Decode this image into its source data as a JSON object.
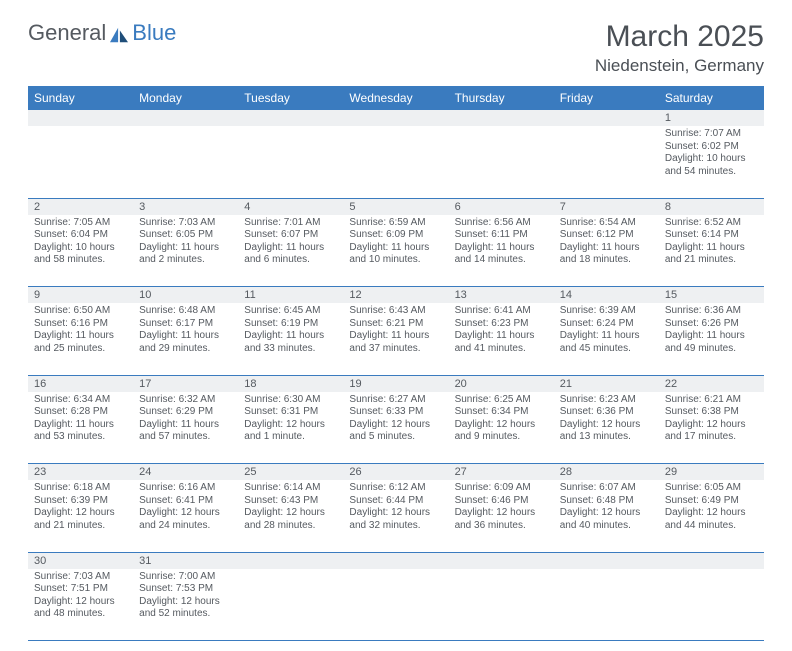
{
  "brand": {
    "general": "General",
    "blue": "Blue"
  },
  "title": "March 2025",
  "location": "Niedenstein, Germany",
  "colors": {
    "header_bg": "#3a7bbf",
    "header_text": "#ffffff",
    "daynum_bg": "#eef0f2",
    "border": "#3a7bbf",
    "text": "#555a60",
    "page_bg": "#ffffff"
  },
  "day_headers": [
    "Sunday",
    "Monday",
    "Tuesday",
    "Wednesday",
    "Thursday",
    "Friday",
    "Saturday"
  ],
  "weeks": [
    [
      {
        "n": "",
        "sr": "",
        "ss": "",
        "dl": ""
      },
      {
        "n": "",
        "sr": "",
        "ss": "",
        "dl": ""
      },
      {
        "n": "",
        "sr": "",
        "ss": "",
        "dl": ""
      },
      {
        "n": "",
        "sr": "",
        "ss": "",
        "dl": ""
      },
      {
        "n": "",
        "sr": "",
        "ss": "",
        "dl": ""
      },
      {
        "n": "",
        "sr": "",
        "ss": "",
        "dl": ""
      },
      {
        "n": "1",
        "sr": "Sunrise: 7:07 AM",
        "ss": "Sunset: 6:02 PM",
        "dl": "Daylight: 10 hours and 54 minutes."
      }
    ],
    [
      {
        "n": "2",
        "sr": "Sunrise: 7:05 AM",
        "ss": "Sunset: 6:04 PM",
        "dl": "Daylight: 10 hours and 58 minutes."
      },
      {
        "n": "3",
        "sr": "Sunrise: 7:03 AM",
        "ss": "Sunset: 6:05 PM",
        "dl": "Daylight: 11 hours and 2 minutes."
      },
      {
        "n": "4",
        "sr": "Sunrise: 7:01 AM",
        "ss": "Sunset: 6:07 PM",
        "dl": "Daylight: 11 hours and 6 minutes."
      },
      {
        "n": "5",
        "sr": "Sunrise: 6:59 AM",
        "ss": "Sunset: 6:09 PM",
        "dl": "Daylight: 11 hours and 10 minutes."
      },
      {
        "n": "6",
        "sr": "Sunrise: 6:56 AM",
        "ss": "Sunset: 6:11 PM",
        "dl": "Daylight: 11 hours and 14 minutes."
      },
      {
        "n": "7",
        "sr": "Sunrise: 6:54 AM",
        "ss": "Sunset: 6:12 PM",
        "dl": "Daylight: 11 hours and 18 minutes."
      },
      {
        "n": "8",
        "sr": "Sunrise: 6:52 AM",
        "ss": "Sunset: 6:14 PM",
        "dl": "Daylight: 11 hours and 21 minutes."
      }
    ],
    [
      {
        "n": "9",
        "sr": "Sunrise: 6:50 AM",
        "ss": "Sunset: 6:16 PM",
        "dl": "Daylight: 11 hours and 25 minutes."
      },
      {
        "n": "10",
        "sr": "Sunrise: 6:48 AM",
        "ss": "Sunset: 6:17 PM",
        "dl": "Daylight: 11 hours and 29 minutes."
      },
      {
        "n": "11",
        "sr": "Sunrise: 6:45 AM",
        "ss": "Sunset: 6:19 PM",
        "dl": "Daylight: 11 hours and 33 minutes."
      },
      {
        "n": "12",
        "sr": "Sunrise: 6:43 AM",
        "ss": "Sunset: 6:21 PM",
        "dl": "Daylight: 11 hours and 37 minutes."
      },
      {
        "n": "13",
        "sr": "Sunrise: 6:41 AM",
        "ss": "Sunset: 6:23 PM",
        "dl": "Daylight: 11 hours and 41 minutes."
      },
      {
        "n": "14",
        "sr": "Sunrise: 6:39 AM",
        "ss": "Sunset: 6:24 PM",
        "dl": "Daylight: 11 hours and 45 minutes."
      },
      {
        "n": "15",
        "sr": "Sunrise: 6:36 AM",
        "ss": "Sunset: 6:26 PM",
        "dl": "Daylight: 11 hours and 49 minutes."
      }
    ],
    [
      {
        "n": "16",
        "sr": "Sunrise: 6:34 AM",
        "ss": "Sunset: 6:28 PM",
        "dl": "Daylight: 11 hours and 53 minutes."
      },
      {
        "n": "17",
        "sr": "Sunrise: 6:32 AM",
        "ss": "Sunset: 6:29 PM",
        "dl": "Daylight: 11 hours and 57 minutes."
      },
      {
        "n": "18",
        "sr": "Sunrise: 6:30 AM",
        "ss": "Sunset: 6:31 PM",
        "dl": "Daylight: 12 hours and 1 minute."
      },
      {
        "n": "19",
        "sr": "Sunrise: 6:27 AM",
        "ss": "Sunset: 6:33 PM",
        "dl": "Daylight: 12 hours and 5 minutes."
      },
      {
        "n": "20",
        "sr": "Sunrise: 6:25 AM",
        "ss": "Sunset: 6:34 PM",
        "dl": "Daylight: 12 hours and 9 minutes."
      },
      {
        "n": "21",
        "sr": "Sunrise: 6:23 AM",
        "ss": "Sunset: 6:36 PM",
        "dl": "Daylight: 12 hours and 13 minutes."
      },
      {
        "n": "22",
        "sr": "Sunrise: 6:21 AM",
        "ss": "Sunset: 6:38 PM",
        "dl": "Daylight: 12 hours and 17 minutes."
      }
    ],
    [
      {
        "n": "23",
        "sr": "Sunrise: 6:18 AM",
        "ss": "Sunset: 6:39 PM",
        "dl": "Daylight: 12 hours and 21 minutes."
      },
      {
        "n": "24",
        "sr": "Sunrise: 6:16 AM",
        "ss": "Sunset: 6:41 PM",
        "dl": "Daylight: 12 hours and 24 minutes."
      },
      {
        "n": "25",
        "sr": "Sunrise: 6:14 AM",
        "ss": "Sunset: 6:43 PM",
        "dl": "Daylight: 12 hours and 28 minutes."
      },
      {
        "n": "26",
        "sr": "Sunrise: 6:12 AM",
        "ss": "Sunset: 6:44 PM",
        "dl": "Daylight: 12 hours and 32 minutes."
      },
      {
        "n": "27",
        "sr": "Sunrise: 6:09 AM",
        "ss": "Sunset: 6:46 PM",
        "dl": "Daylight: 12 hours and 36 minutes."
      },
      {
        "n": "28",
        "sr": "Sunrise: 6:07 AM",
        "ss": "Sunset: 6:48 PM",
        "dl": "Daylight: 12 hours and 40 minutes."
      },
      {
        "n": "29",
        "sr": "Sunrise: 6:05 AM",
        "ss": "Sunset: 6:49 PM",
        "dl": "Daylight: 12 hours and 44 minutes."
      }
    ],
    [
      {
        "n": "30",
        "sr": "Sunrise: 7:03 AM",
        "ss": "Sunset: 7:51 PM",
        "dl": "Daylight: 12 hours and 48 minutes."
      },
      {
        "n": "31",
        "sr": "Sunrise: 7:00 AM",
        "ss": "Sunset: 7:53 PM",
        "dl": "Daylight: 12 hours and 52 minutes."
      },
      {
        "n": "",
        "sr": "",
        "ss": "",
        "dl": ""
      },
      {
        "n": "",
        "sr": "",
        "ss": "",
        "dl": ""
      },
      {
        "n": "",
        "sr": "",
        "ss": "",
        "dl": ""
      },
      {
        "n": "",
        "sr": "",
        "ss": "",
        "dl": ""
      },
      {
        "n": "",
        "sr": "",
        "ss": "",
        "dl": ""
      }
    ]
  ]
}
